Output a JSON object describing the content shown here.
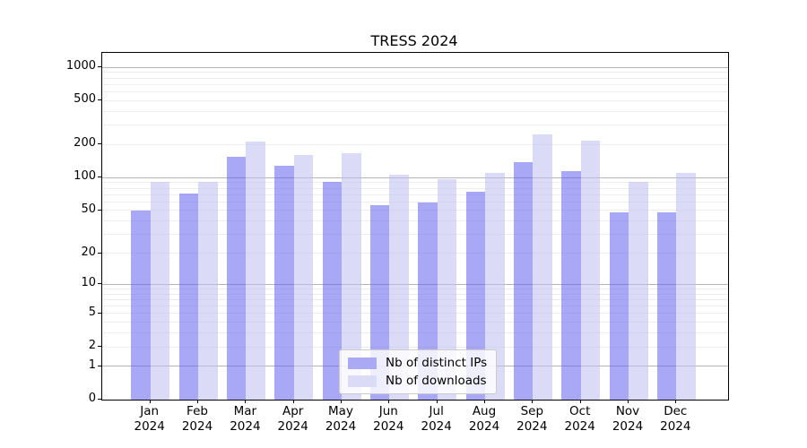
{
  "chart_data": {
    "type": "bar",
    "title": "TRESS 2024",
    "categories": [
      "Jan",
      "Feb",
      "Mar",
      "Apr",
      "May",
      "Jun",
      "Jul",
      "Aug",
      "Sep",
      "Oct",
      "Nov",
      "Dec"
    ],
    "x_year_label": "2024",
    "series": [
      {
        "name": "Nb of distinct IPs",
        "fill": "rgba(97,97,239,0.55)",
        "flat_color": "#a9a9f4",
        "values": [
          50,
          71,
          155,
          128,
          91,
          56,
          59,
          74,
          138,
          115,
          48,
          48
        ]
      },
      {
        "name": "Nb of downloads",
        "fill": "rgba(190,190,240,0.55)",
        "flat_color": "#dbdbf7",
        "values": [
          92,
          92,
          212,
          162,
          167,
          106,
          96,
          110,
          247,
          218,
          92,
          110
        ]
      }
    ],
    "y_axis": {
      "scale": "symlog-log10(1+x)",
      "tick_labels": [
        0,
        1,
        2,
        5,
        10,
        20,
        50,
        100,
        200,
        500,
        1000
      ],
      "major_gridlines": [
        1,
        10,
        100,
        1000
      ],
      "ylim": [
        0,
        1300
      ]
    },
    "legend": {
      "position": "lower-center"
    },
    "grid": true
  }
}
